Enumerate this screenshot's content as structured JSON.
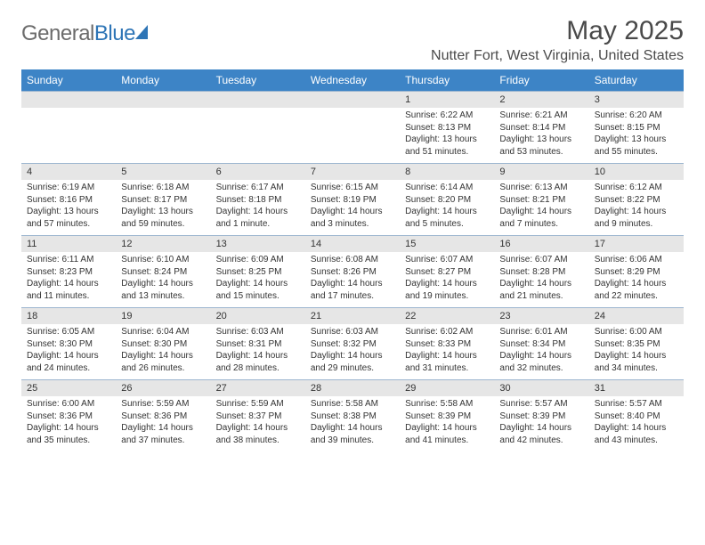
{
  "logo": {
    "text1": "General",
    "text2": "Blue"
  },
  "title": "May 2025",
  "location": "Nutter Fort, West Virginia, United States",
  "colors": {
    "header_bg": "#3d84c6",
    "date_bg": "#e6e6e6",
    "border": "#9db6d0",
    "text": "#333333",
    "logo_gray": "#6b6b6b",
    "logo_blue": "#2e75b6"
  },
  "dayNames": [
    "Sunday",
    "Monday",
    "Tuesday",
    "Wednesday",
    "Thursday",
    "Friday",
    "Saturday"
  ],
  "weeks": [
    [
      {
        "date": "",
        "sunrise": "",
        "sunset": "",
        "daylight": ""
      },
      {
        "date": "",
        "sunrise": "",
        "sunset": "",
        "daylight": ""
      },
      {
        "date": "",
        "sunrise": "",
        "sunset": "",
        "daylight": ""
      },
      {
        "date": "",
        "sunrise": "",
        "sunset": "",
        "daylight": ""
      },
      {
        "date": "1",
        "sunrise": "Sunrise: 6:22 AM",
        "sunset": "Sunset: 8:13 PM",
        "daylight": "Daylight: 13 hours and 51 minutes."
      },
      {
        "date": "2",
        "sunrise": "Sunrise: 6:21 AM",
        "sunset": "Sunset: 8:14 PM",
        "daylight": "Daylight: 13 hours and 53 minutes."
      },
      {
        "date": "3",
        "sunrise": "Sunrise: 6:20 AM",
        "sunset": "Sunset: 8:15 PM",
        "daylight": "Daylight: 13 hours and 55 minutes."
      }
    ],
    [
      {
        "date": "4",
        "sunrise": "Sunrise: 6:19 AM",
        "sunset": "Sunset: 8:16 PM",
        "daylight": "Daylight: 13 hours and 57 minutes."
      },
      {
        "date": "5",
        "sunrise": "Sunrise: 6:18 AM",
        "sunset": "Sunset: 8:17 PM",
        "daylight": "Daylight: 13 hours and 59 minutes."
      },
      {
        "date": "6",
        "sunrise": "Sunrise: 6:17 AM",
        "sunset": "Sunset: 8:18 PM",
        "daylight": "Daylight: 14 hours and 1 minute."
      },
      {
        "date": "7",
        "sunrise": "Sunrise: 6:15 AM",
        "sunset": "Sunset: 8:19 PM",
        "daylight": "Daylight: 14 hours and 3 minutes."
      },
      {
        "date": "8",
        "sunrise": "Sunrise: 6:14 AM",
        "sunset": "Sunset: 8:20 PM",
        "daylight": "Daylight: 14 hours and 5 minutes."
      },
      {
        "date": "9",
        "sunrise": "Sunrise: 6:13 AM",
        "sunset": "Sunset: 8:21 PM",
        "daylight": "Daylight: 14 hours and 7 minutes."
      },
      {
        "date": "10",
        "sunrise": "Sunrise: 6:12 AM",
        "sunset": "Sunset: 8:22 PM",
        "daylight": "Daylight: 14 hours and 9 minutes."
      }
    ],
    [
      {
        "date": "11",
        "sunrise": "Sunrise: 6:11 AM",
        "sunset": "Sunset: 8:23 PM",
        "daylight": "Daylight: 14 hours and 11 minutes."
      },
      {
        "date": "12",
        "sunrise": "Sunrise: 6:10 AM",
        "sunset": "Sunset: 8:24 PM",
        "daylight": "Daylight: 14 hours and 13 minutes."
      },
      {
        "date": "13",
        "sunrise": "Sunrise: 6:09 AM",
        "sunset": "Sunset: 8:25 PM",
        "daylight": "Daylight: 14 hours and 15 minutes."
      },
      {
        "date": "14",
        "sunrise": "Sunrise: 6:08 AM",
        "sunset": "Sunset: 8:26 PM",
        "daylight": "Daylight: 14 hours and 17 minutes."
      },
      {
        "date": "15",
        "sunrise": "Sunrise: 6:07 AM",
        "sunset": "Sunset: 8:27 PM",
        "daylight": "Daylight: 14 hours and 19 minutes."
      },
      {
        "date": "16",
        "sunrise": "Sunrise: 6:07 AM",
        "sunset": "Sunset: 8:28 PM",
        "daylight": "Daylight: 14 hours and 21 minutes."
      },
      {
        "date": "17",
        "sunrise": "Sunrise: 6:06 AM",
        "sunset": "Sunset: 8:29 PM",
        "daylight": "Daylight: 14 hours and 22 minutes."
      }
    ],
    [
      {
        "date": "18",
        "sunrise": "Sunrise: 6:05 AM",
        "sunset": "Sunset: 8:30 PM",
        "daylight": "Daylight: 14 hours and 24 minutes."
      },
      {
        "date": "19",
        "sunrise": "Sunrise: 6:04 AM",
        "sunset": "Sunset: 8:30 PM",
        "daylight": "Daylight: 14 hours and 26 minutes."
      },
      {
        "date": "20",
        "sunrise": "Sunrise: 6:03 AM",
        "sunset": "Sunset: 8:31 PM",
        "daylight": "Daylight: 14 hours and 28 minutes."
      },
      {
        "date": "21",
        "sunrise": "Sunrise: 6:03 AM",
        "sunset": "Sunset: 8:32 PM",
        "daylight": "Daylight: 14 hours and 29 minutes."
      },
      {
        "date": "22",
        "sunrise": "Sunrise: 6:02 AM",
        "sunset": "Sunset: 8:33 PM",
        "daylight": "Daylight: 14 hours and 31 minutes."
      },
      {
        "date": "23",
        "sunrise": "Sunrise: 6:01 AM",
        "sunset": "Sunset: 8:34 PM",
        "daylight": "Daylight: 14 hours and 32 minutes."
      },
      {
        "date": "24",
        "sunrise": "Sunrise: 6:00 AM",
        "sunset": "Sunset: 8:35 PM",
        "daylight": "Daylight: 14 hours and 34 minutes."
      }
    ],
    [
      {
        "date": "25",
        "sunrise": "Sunrise: 6:00 AM",
        "sunset": "Sunset: 8:36 PM",
        "daylight": "Daylight: 14 hours and 35 minutes."
      },
      {
        "date": "26",
        "sunrise": "Sunrise: 5:59 AM",
        "sunset": "Sunset: 8:36 PM",
        "daylight": "Daylight: 14 hours and 37 minutes."
      },
      {
        "date": "27",
        "sunrise": "Sunrise: 5:59 AM",
        "sunset": "Sunset: 8:37 PM",
        "daylight": "Daylight: 14 hours and 38 minutes."
      },
      {
        "date": "28",
        "sunrise": "Sunrise: 5:58 AM",
        "sunset": "Sunset: 8:38 PM",
        "daylight": "Daylight: 14 hours and 39 minutes."
      },
      {
        "date": "29",
        "sunrise": "Sunrise: 5:58 AM",
        "sunset": "Sunset: 8:39 PM",
        "daylight": "Daylight: 14 hours and 41 minutes."
      },
      {
        "date": "30",
        "sunrise": "Sunrise: 5:57 AM",
        "sunset": "Sunset: 8:39 PM",
        "daylight": "Daylight: 14 hours and 42 minutes."
      },
      {
        "date": "31",
        "sunrise": "Sunrise: 5:57 AM",
        "sunset": "Sunset: 8:40 PM",
        "daylight": "Daylight: 14 hours and 43 minutes."
      }
    ]
  ]
}
